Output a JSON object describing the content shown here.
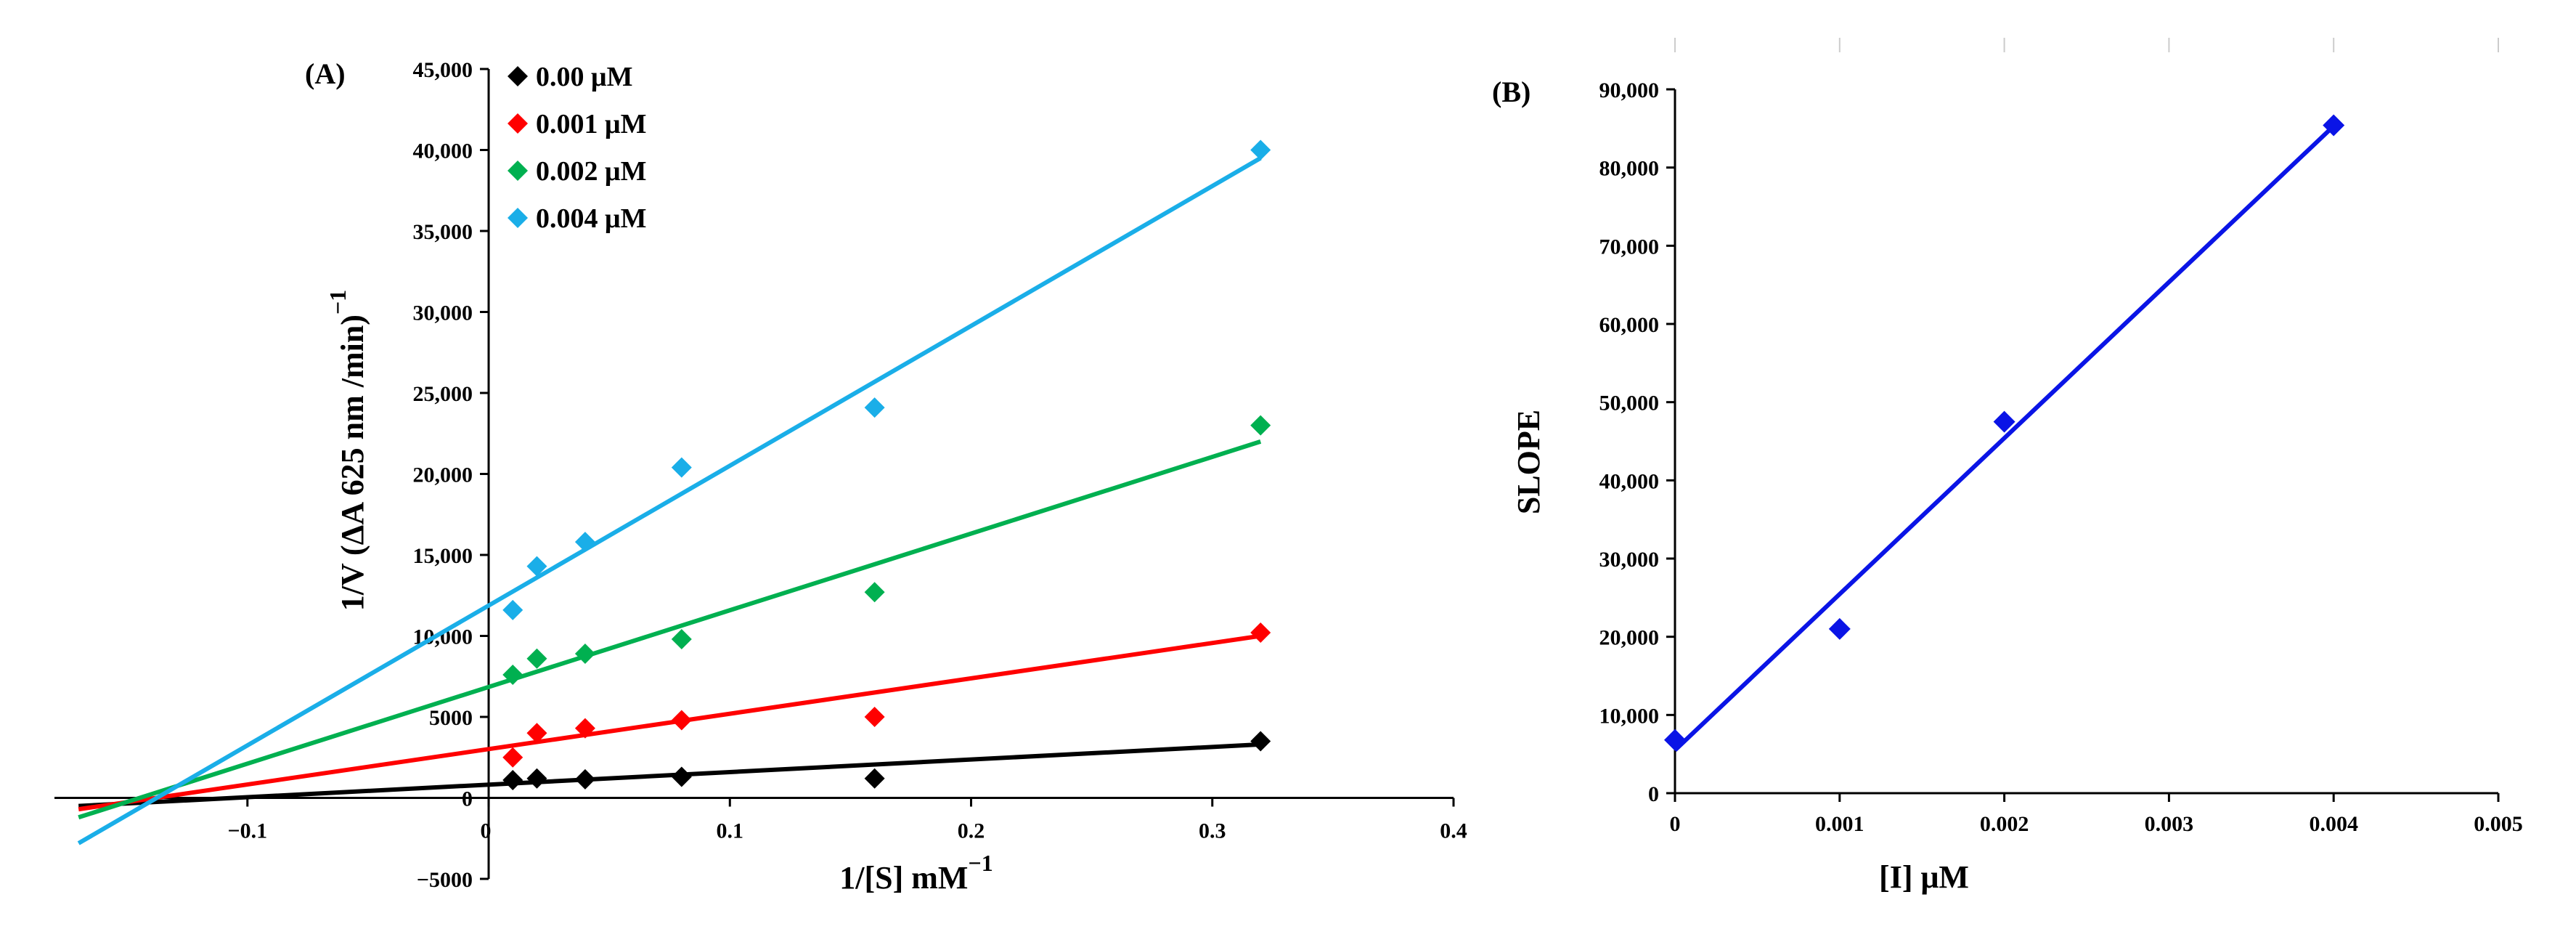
{
  "chart_data": [
    {
      "panel_label": "(A)",
      "type": "scatter",
      "xlabel": "1/[S] mM",
      "xlabel_sup": "−1",
      "ylabel": "1/V (ΔA 625 nm /min)",
      "ylabel_sup": "−1",
      "xlim": [
        -0.18,
        0.4
      ],
      "ylim": [
        -5000,
        45000
      ],
      "xticks": [
        -0.1,
        0,
        0.1,
        0.2,
        0.3,
        0.4
      ],
      "xtick_labels": [
        "−0.1",
        "0",
        "0.1",
        "0.2",
        "0.3",
        "0.4"
      ],
      "yticks": [
        -5000,
        0,
        5000,
        10000,
        15000,
        20000,
        25000,
        30000,
        35000,
        40000,
        45000
      ],
      "ytick_labels": [
        "−5000",
        "0",
        "5000",
        "10,000",
        "15,000",
        "20,000",
        "25,000",
        "30,000",
        "35,000",
        "40,000",
        "45,000"
      ],
      "legend_position": "top-left",
      "series": [
        {
          "name": "0.00 μM",
          "color": "#000000",
          "x": [
            0.01,
            0.02,
            0.04,
            0.08,
            0.16,
            0.32
          ],
          "y": [
            1100,
            1200,
            1150,
            1300,
            1200,
            3500
          ],
          "fit_x": [
            -0.17,
            0.32
          ],
          "fit_y": [
            -500,
            3300
          ]
        },
        {
          "name": "0.001 μM",
          "color": "#ff0000",
          "x": [
            0.01,
            0.02,
            0.04,
            0.08,
            0.16,
            0.32
          ],
          "y": [
            2500,
            4000,
            4300,
            4800,
            5000,
            10200
          ],
          "fit_x": [
            -0.17,
            0.32
          ],
          "fit_y": [
            -700,
            10000
          ]
        },
        {
          "name": "0.002 μM",
          "color": "#00b050",
          "x": [
            0.01,
            0.02,
            0.04,
            0.08,
            0.16,
            0.32
          ],
          "y": [
            7600,
            8600,
            8900,
            9800,
            12700,
            23000
          ],
          "fit_x": [
            -0.17,
            0.32
          ],
          "fit_y": [
            -1200,
            22000
          ]
        },
        {
          "name": "0.004 μM",
          "color": "#1aaee8",
          "x": [
            0.01,
            0.02,
            0.04,
            0.08,
            0.16,
            0.32
          ],
          "y": [
            11600,
            14300,
            15800,
            20400,
            24100,
            40000
          ],
          "fit_x": [
            -0.17,
            0.32
          ],
          "fit_y": [
            -2800,
            39500
          ]
        }
      ]
    },
    {
      "panel_label": "(B)",
      "type": "scatter",
      "xlabel": "[I] μM",
      "ylabel": "SLOPE",
      "xlim": [
        0,
        0.005
      ],
      "ylim": [
        0,
        90000
      ],
      "xticks": [
        0,
        0.001,
        0.002,
        0.003,
        0.004,
        0.005
      ],
      "xtick_labels": [
        "0",
        "0.001",
        "0.002",
        "0.003",
        "0.004",
        "0.005"
      ],
      "yticks": [
        0,
        10000,
        20000,
        30000,
        40000,
        50000,
        60000,
        70000,
        80000,
        90000
      ],
      "ytick_labels": [
        "0",
        "10,000",
        "20,000",
        "30,000",
        "40,000",
        "50,000",
        "60,000",
        "70,000",
        "80,000",
        "90,000"
      ],
      "series": [
        {
          "color": "#0a14e6",
          "x": [
            0,
            0.001,
            0.002,
            0.004
          ],
          "y": [
            6800,
            21000,
            47500,
            85400
          ],
          "fit_x": [
            0,
            0.004
          ],
          "fit_y": [
            5500,
            85300
          ]
        }
      ]
    }
  ]
}
